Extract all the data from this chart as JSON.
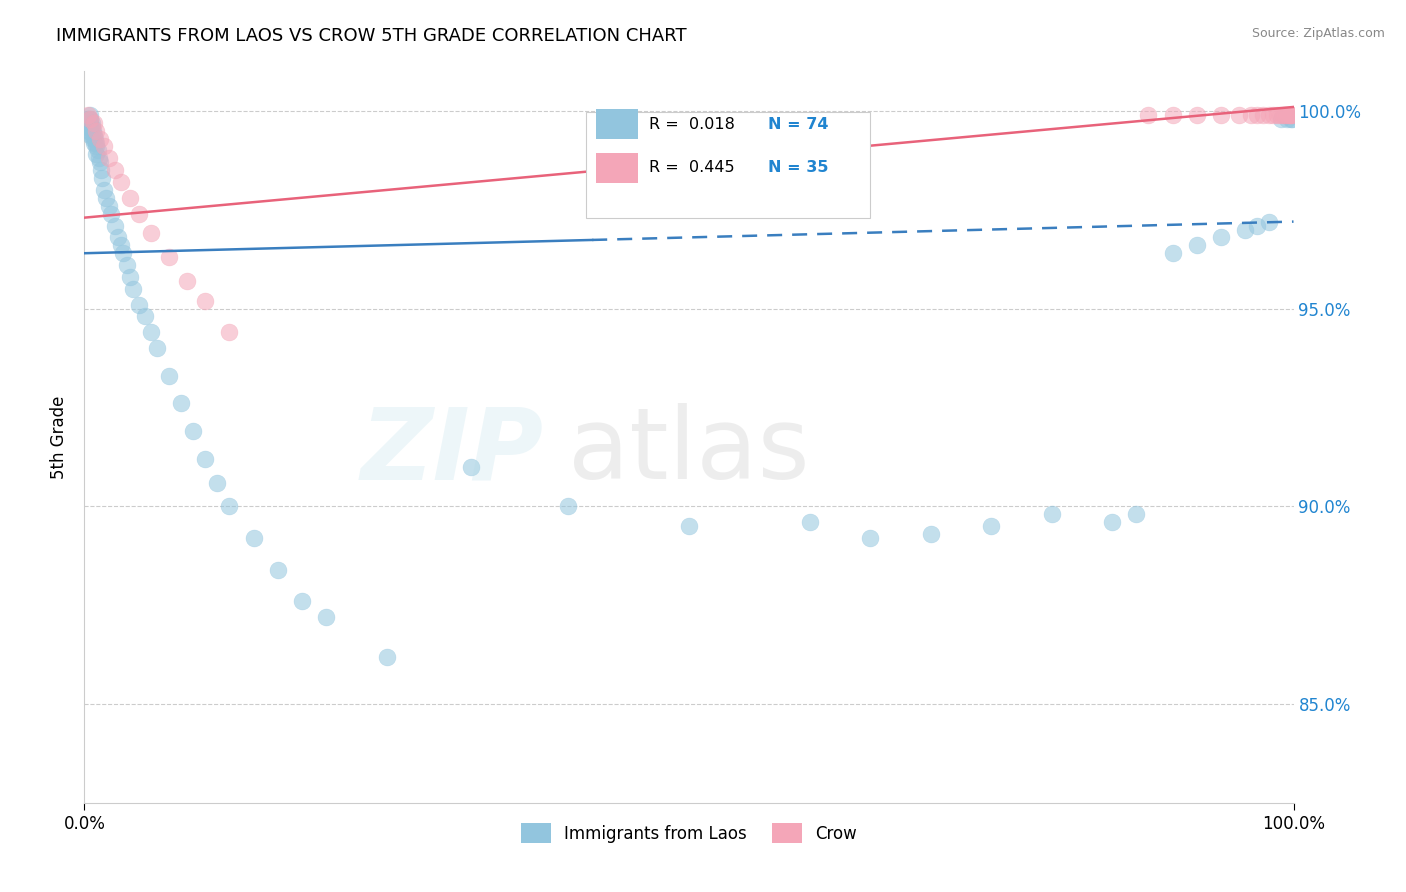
{
  "title": "IMMIGRANTS FROM LAOS VS CROW 5TH GRADE CORRELATION CHART",
  "source": "Source: ZipAtlas.com",
  "ylabel": "5th Grade",
  "xlim": [
    0.0,
    1.0
  ],
  "ylim": [
    0.825,
    1.01
  ],
  "yticks": [
    0.85,
    0.9,
    0.95,
    1.0
  ],
  "ytick_labels": [
    "85.0%",
    "90.0%",
    "95.0%",
    "100.0%"
  ],
  "xticks": [
    0.0,
    1.0
  ],
  "xtick_labels": [
    "0.0%",
    "100.0%"
  ],
  "blue_label": "Immigrants from Laos",
  "pink_label": "Crow",
  "R_blue": "0.018",
  "N_blue": "74",
  "R_pink": "0.445",
  "N_pink": "35",
  "blue_color": "#92c5de",
  "pink_color": "#f4a6b8",
  "blue_line_color": "#3a7ebf",
  "pink_line_color": "#e8627a",
  "grid_color": "#cccccc",
  "blue_line_solid_end": 0.42,
  "blue_line_x0": 0.0,
  "blue_line_y0": 0.964,
  "blue_line_x1": 1.0,
  "blue_line_y1": 0.972,
  "pink_line_x0": 0.0,
  "pink_line_y0": 0.973,
  "pink_line_x1": 1.0,
  "pink_line_y1": 1.001,
  "blue_dots_x": [
    0.002,
    0.003,
    0.003,
    0.003,
    0.004,
    0.004,
    0.004,
    0.005,
    0.005,
    0.005,
    0.005,
    0.005,
    0.006,
    0.006,
    0.006,
    0.007,
    0.007,
    0.008,
    0.008,
    0.009,
    0.01,
    0.01,
    0.01,
    0.011,
    0.012,
    0.013,
    0.014,
    0.015,
    0.016,
    0.018,
    0.02,
    0.022,
    0.025,
    0.028,
    0.03,
    0.032,
    0.035,
    0.038,
    0.04,
    0.045,
    0.05,
    0.055,
    0.06,
    0.07,
    0.08,
    0.09,
    0.1,
    0.11,
    0.12,
    0.14,
    0.16,
    0.18,
    0.2,
    0.25,
    0.32,
    0.4,
    0.5,
    0.6,
    0.65,
    0.7,
    0.75,
    0.8,
    0.85,
    0.87,
    0.9,
    0.92,
    0.94,
    0.96,
    0.97,
    0.98,
    0.99,
    0.995,
    0.998,
    0.999
  ],
  "blue_dots_y": [
    0.998,
    0.998,
    0.997,
    0.996,
    0.998,
    0.997,
    0.995,
    0.999,
    0.998,
    0.997,
    0.996,
    0.994,
    0.997,
    0.996,
    0.994,
    0.995,
    0.993,
    0.994,
    0.992,
    0.993,
    0.992,
    0.991,
    0.989,
    0.99,
    0.988,
    0.987,
    0.985,
    0.983,
    0.98,
    0.978,
    0.976,
    0.974,
    0.971,
    0.968,
    0.966,
    0.964,
    0.961,
    0.958,
    0.955,
    0.951,
    0.948,
    0.944,
    0.94,
    0.933,
    0.926,
    0.919,
    0.912,
    0.906,
    0.9,
    0.892,
    0.884,
    0.876,
    0.872,
    0.862,
    0.91,
    0.9,
    0.895,
    0.896,
    0.892,
    0.893,
    0.895,
    0.898,
    0.896,
    0.898,
    0.964,
    0.966,
    0.968,
    0.97,
    0.971,
    0.972,
    0.998,
    0.998,
    0.998,
    0.998
  ],
  "pink_dots_x": [
    0.003,
    0.005,
    0.008,
    0.01,
    0.013,
    0.016,
    0.02,
    0.025,
    0.03,
    0.038,
    0.045,
    0.055,
    0.07,
    0.085,
    0.1,
    0.12,
    0.88,
    0.9,
    0.92,
    0.94,
    0.955,
    0.965,
    0.97,
    0.975,
    0.98,
    0.983,
    0.986,
    0.989,
    0.991,
    0.993,
    0.995,
    0.996,
    0.997,
    0.998,
    0.999
  ],
  "pink_dots_y": [
    0.999,
    0.998,
    0.997,
    0.995,
    0.993,
    0.991,
    0.988,
    0.985,
    0.982,
    0.978,
    0.974,
    0.969,
    0.963,
    0.957,
    0.952,
    0.944,
    0.999,
    0.999,
    0.999,
    0.999,
    0.999,
    0.999,
    0.999,
    0.999,
    0.999,
    0.999,
    0.999,
    0.999,
    0.999,
    0.999,
    0.999,
    0.999,
    0.999,
    0.999,
    0.999
  ]
}
